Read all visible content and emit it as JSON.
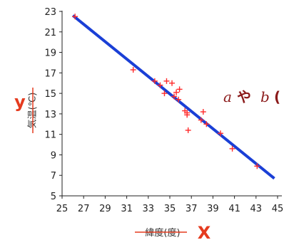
{
  "colors": {
    "axis": "#222222",
    "fit_line": "#1a3fd6",
    "points": "#ff2a2a",
    "accent": "#e53b1f",
    "annotation": "#8b1a1a"
  },
  "annotation": {
    "a": "a",
    "ya": "や",
    "b": "b",
    "paren": "("
  },
  "chart_data": {
    "type": "scatter",
    "title": "",
    "xlabel": "緯度(度)",
    "ylabel": "気温(℃)",
    "x_letter": "X",
    "y_letter": "y",
    "xlim": [
      25,
      45
    ],
    "ylim": [
      5,
      23
    ],
    "xticks": [
      25,
      27,
      29,
      31,
      33,
      35,
      37,
      39,
      41,
      43,
      45
    ],
    "yticks": [
      5,
      7,
      9,
      11,
      13,
      15,
      17,
      19,
      21,
      23
    ],
    "grid": false,
    "points": [
      {
        "x": 26.2,
        "y": 22.5
      },
      {
        "x": 31.6,
        "y": 17.3
      },
      {
        "x": 33.6,
        "y": 16.2
      },
      {
        "x": 34.1,
        "y": 15.8
      },
      {
        "x": 34.7,
        "y": 16.2
      },
      {
        "x": 35.2,
        "y": 16.0
      },
      {
        "x": 34.5,
        "y": 15.0
      },
      {
        "x": 35.6,
        "y": 15.1
      },
      {
        "x": 35.9,
        "y": 15.4
      },
      {
        "x": 35.4,
        "y": 14.7
      },
      {
        "x": 35.8,
        "y": 14.4
      },
      {
        "x": 36.4,
        "y": 13.3
      },
      {
        "x": 36.6,
        "y": 12.9
      },
      {
        "x": 36.6,
        "y": 13.1
      },
      {
        "x": 38.1,
        "y": 13.2
      },
      {
        "x": 37.9,
        "y": 12.4
      },
      {
        "x": 38.4,
        "y": 12.0
      },
      {
        "x": 36.7,
        "y": 11.4
      },
      {
        "x": 39.7,
        "y": 11.1
      },
      {
        "x": 40.8,
        "y": 9.6
      },
      {
        "x": 43.1,
        "y": 7.9
      }
    ],
    "fit_line": {
      "x1": 26.0,
      "y1": 22.6,
      "x2": 44.7,
      "y2": 6.7
    }
  }
}
